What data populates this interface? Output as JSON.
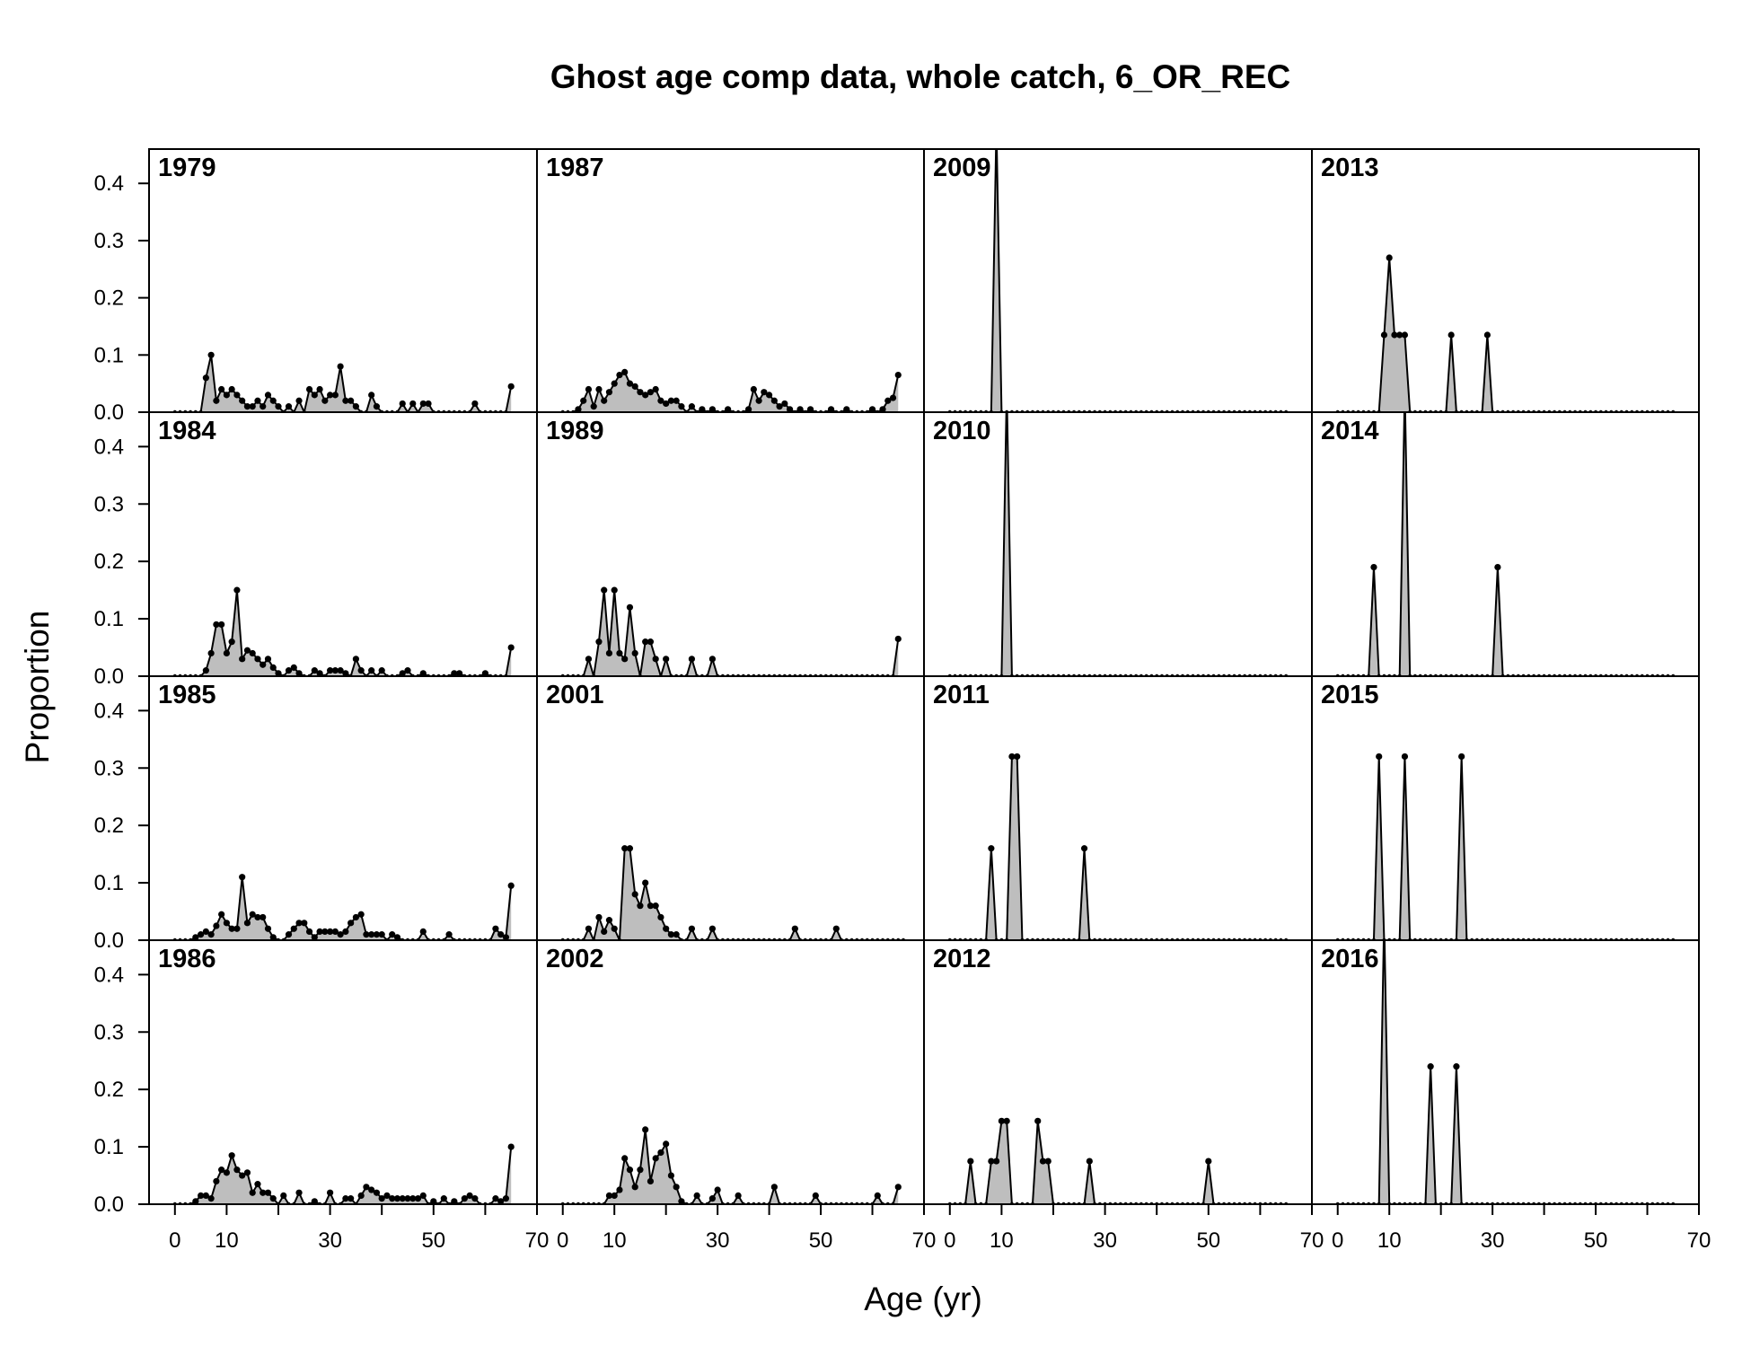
{
  "chart_data": {
    "type": "area",
    "title": "Ghost age comp data, whole catch, 6_OR_REC",
    "xlabel": "Age (yr)",
    "ylabel": "Proportion",
    "xlim": [
      -5,
      70
    ],
    "ylim": [
      0,
      0.46
    ],
    "x_ticks": [
      0,
      10,
      30,
      50,
      70
    ],
    "x_minor_ticks": [
      0,
      10,
      20,
      30,
      40,
      50,
      60,
      70
    ],
    "y_ticks": [
      "0.0",
      "0.1",
      "0.2",
      "0.3",
      "0.4"
    ],
    "max_age": 65,
    "panel_order": [
      "1979",
      "1984",
      "1985",
      "1986",
      "1987",
      "1989",
      "2001",
      "2002",
      "2009",
      "2010",
      "2011",
      "2012",
      "2013",
      "2014",
      "2015",
      "2016"
    ],
    "panels": {
      "1979": {
        "ages": [
          6,
          7,
          8,
          9,
          10,
          11,
          12,
          13,
          14,
          15,
          16,
          17,
          18,
          19,
          20,
          22,
          24,
          26,
          27,
          28,
          29,
          30,
          31,
          32,
          33,
          34,
          35,
          38,
          39,
          44,
          46,
          48,
          49,
          58,
          65
        ],
        "values": [
          0.06,
          0.1,
          0.02,
          0.04,
          0.03,
          0.04,
          0.03,
          0.02,
          0.01,
          0.01,
          0.02,
          0.01,
          0.03,
          0.02,
          0.01,
          0.01,
          0.02,
          0.04,
          0.03,
          0.04,
          0.02,
          0.03,
          0.03,
          0.08,
          0.02,
          0.02,
          0.01,
          0.03,
          0.01,
          0.015,
          0.015,
          0.015,
          0.015,
          0.015,
          0.045
        ]
      },
      "1984": {
        "ages": [
          6,
          7,
          8,
          9,
          10,
          11,
          12,
          13,
          14,
          15,
          16,
          17,
          18,
          19,
          20,
          22,
          23,
          24,
          27,
          28,
          30,
          31,
          32,
          33,
          35,
          36,
          38,
          40,
          44,
          45,
          48,
          54,
          55,
          60,
          65
        ],
        "values": [
          0.01,
          0.04,
          0.09,
          0.09,
          0.04,
          0.06,
          0.15,
          0.03,
          0.045,
          0.04,
          0.03,
          0.02,
          0.03,
          0.015,
          0.005,
          0.01,
          0.015,
          0.005,
          0.01,
          0.005,
          0.01,
          0.01,
          0.01,
          0.005,
          0.03,
          0.01,
          0.01,
          0.01,
          0.005,
          0.01,
          0.005,
          0.005,
          0.005,
          0.005,
          0.05
        ]
      },
      "1985": {
        "ages": [
          4,
          5,
          6,
          7,
          8,
          9,
          10,
          11,
          12,
          13,
          14,
          15,
          16,
          17,
          18,
          19,
          22,
          23,
          24,
          25,
          26,
          27,
          28,
          29,
          30,
          31,
          32,
          33,
          34,
          35,
          36,
          37,
          38,
          39,
          40,
          42,
          43,
          48,
          53,
          62,
          63,
          64,
          65
        ],
        "values": [
          0.005,
          0.01,
          0.015,
          0.01,
          0.025,
          0.045,
          0.03,
          0.02,
          0.02,
          0.11,
          0.03,
          0.045,
          0.04,
          0.04,
          0.02,
          0.005,
          0.01,
          0.02,
          0.03,
          0.03,
          0.015,
          0.005,
          0.015,
          0.015,
          0.015,
          0.015,
          0.01,
          0.015,
          0.03,
          0.04,
          0.045,
          0.01,
          0.01,
          0.01,
          0.01,
          0.01,
          0.005,
          0.015,
          0.01,
          0.02,
          0.01,
          0.005,
          0.095
        ]
      },
      "1986": {
        "ages": [
          4,
          5,
          6,
          7,
          8,
          9,
          10,
          11,
          12,
          13,
          14,
          15,
          16,
          17,
          18,
          19,
          21,
          24,
          27,
          30,
          33,
          34,
          36,
          37,
          38,
          39,
          40,
          41,
          42,
          43,
          44,
          45,
          46,
          47,
          48,
          50,
          52,
          54,
          56,
          57,
          58,
          62,
          63,
          64,
          65
        ],
        "values": [
          0.005,
          0.015,
          0.015,
          0.01,
          0.04,
          0.06,
          0.055,
          0.085,
          0.06,
          0.05,
          0.055,
          0.02,
          0.035,
          0.02,
          0.02,
          0.01,
          0.015,
          0.02,
          0.005,
          0.02,
          0.01,
          0.01,
          0.015,
          0.03,
          0.025,
          0.02,
          0.01,
          0.015,
          0.01,
          0.01,
          0.01,
          0.01,
          0.01,
          0.01,
          0.015,
          0.005,
          0.01,
          0.005,
          0.01,
          0.015,
          0.01,
          0.01,
          0.005,
          0.01,
          0.1
        ]
      },
      "1987": {
        "ages": [
          3,
          4,
          5,
          6,
          7,
          8,
          9,
          10,
          11,
          12,
          13,
          14,
          15,
          16,
          17,
          18,
          19,
          20,
          21,
          22,
          23,
          25,
          27,
          29,
          32,
          36,
          37,
          38,
          39,
          40,
          41,
          42,
          43,
          44,
          46,
          48,
          52,
          55,
          60,
          62,
          63,
          64,
          65
        ],
        "values": [
          0.005,
          0.02,
          0.04,
          0.01,
          0.04,
          0.02,
          0.035,
          0.05,
          0.065,
          0.07,
          0.05,
          0.045,
          0.035,
          0.03,
          0.035,
          0.04,
          0.02,
          0.015,
          0.02,
          0.02,
          0.01,
          0.01,
          0.005,
          0.005,
          0.005,
          0.005,
          0.04,
          0.02,
          0.035,
          0.03,
          0.02,
          0.01,
          0.015,
          0.005,
          0.005,
          0.005,
          0.005,
          0.005,
          0.005,
          0.005,
          0.02,
          0.025,
          0.065
        ]
      },
      "1989": {
        "ages": [
          5,
          7,
          8,
          9,
          10,
          11,
          12,
          13,
          14,
          16,
          17,
          18,
          20,
          25,
          29,
          65
        ],
        "values": [
          0.03,
          0.06,
          0.15,
          0.04,
          0.15,
          0.04,
          0.03,
          0.12,
          0.04,
          0.06,
          0.06,
          0.03,
          0.03,
          0.03,
          0.03,
          0.065
        ]
      },
      "2001": {
        "ages": [
          5,
          7,
          8,
          9,
          10,
          12,
          13,
          14,
          15,
          16,
          17,
          18,
          19,
          20,
          21,
          22,
          25,
          29,
          45,
          53
        ],
        "values": [
          0.02,
          0.04,
          0.015,
          0.035,
          0.02,
          0.16,
          0.16,
          0.08,
          0.06,
          0.1,
          0.06,
          0.06,
          0.04,
          0.02,
          0.01,
          0.01,
          0.02,
          0.02,
          0.02,
          0.02
        ],
        "x_end": 66
      },
      "2002": {
        "ages": [
          9,
          10,
          11,
          12,
          13,
          14,
          15,
          16,
          17,
          18,
          19,
          20,
          21,
          22,
          23,
          26,
          29,
          30,
          34,
          41,
          49,
          61,
          65
        ],
        "values": [
          0.015,
          0.015,
          0.025,
          0.08,
          0.06,
          0.03,
          0.06,
          0.13,
          0.04,
          0.08,
          0.09,
          0.105,
          0.05,
          0.03,
          0.005,
          0.015,
          0.01,
          0.025,
          0.015,
          0.03,
          0.015,
          0.015,
          0.03
        ]
      },
      "2009": {
        "ages": [
          9
        ],
        "values": [
          0.5
        ],
        "x_end": 65
      },
      "2010": {
        "ages": [
          11
        ],
        "values": [
          0.5
        ],
        "x_end": 65
      },
      "2011": {
        "ages": [
          8,
          12,
          13,
          26
        ],
        "values": [
          0.16,
          0.32,
          0.32,
          0.16
        ],
        "x_end": 65
      },
      "2012": {
        "ages": [
          4,
          8,
          9,
          10,
          11,
          17,
          18,
          19,
          27,
          50
        ],
        "values": [
          0.075,
          0.075,
          0.075,
          0.145,
          0.145,
          0.145,
          0.075,
          0.075,
          0.075,
          0.075
        ],
        "x_end": 65
      },
      "2013": {
        "ages": [
          9,
          10,
          11,
          12,
          13,
          22,
          29
        ],
        "values": [
          0.135,
          0.27,
          0.135,
          0.135,
          0.135,
          0.135,
          0.135
        ],
        "x_end": 65
      },
      "2014": {
        "ages": [
          7,
          13,
          31
        ],
        "values": [
          0.19,
          0.5,
          0.19
        ],
        "x_end": 65
      },
      "2015": {
        "ages": [
          8,
          13,
          24
        ],
        "values": [
          0.32,
          0.32,
          0.32
        ],
        "x_end": 65
      },
      "2016": {
        "ages": [
          9,
          18,
          23
        ],
        "values": [
          0.5,
          0.24,
          0.24
        ],
        "x_end": 65
      }
    }
  }
}
